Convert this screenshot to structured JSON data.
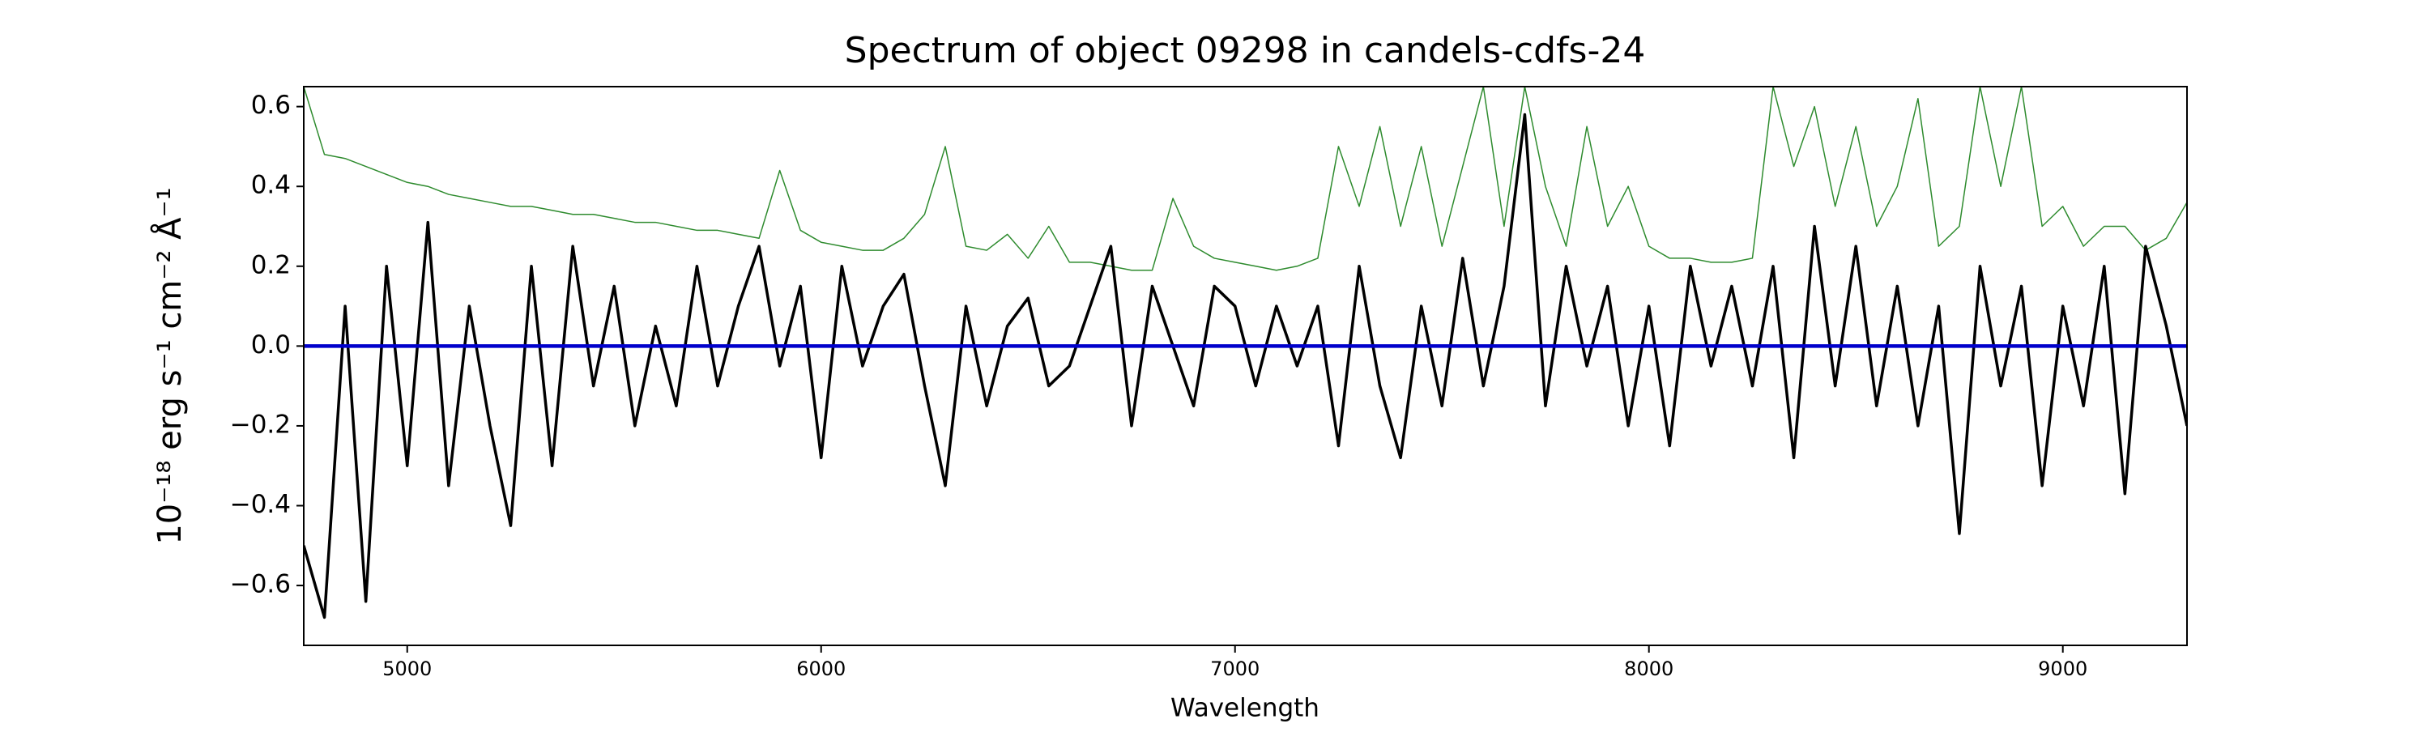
{
  "chart_data": {
    "type": "line",
    "title": "Spectrum of object 09298 in candels-cdfs-24",
    "xlabel": "Wavelength",
    "ylabel": "10⁻¹⁸ erg s⁻¹ cm⁻² Å⁻¹",
    "xlim": [
      4750,
      9300
    ],
    "ylim": [
      -0.75,
      0.65
    ],
    "xticks": [
      5000,
      6000,
      7000,
      8000,
      9000
    ],
    "yticks": [
      {
        "value": -0.6,
        "label": "−0.6"
      },
      {
        "value": -0.4,
        "label": "−0.4"
      },
      {
        "value": -0.2,
        "label": "−0.2"
      },
      {
        "value": 0,
        "label": "0.0"
      },
      {
        "value": 0.2,
        "label": "0.2"
      },
      {
        "value": 0.4,
        "label": "0.4"
      },
      {
        "value": 0.6,
        "label": "0.6"
      }
    ],
    "grid": false,
    "x": [
      4750,
      4800,
      4850,
      4900,
      4950,
      5000,
      5050,
      5100,
      5150,
      5200,
      5250,
      5300,
      5350,
      5400,
      5450,
      5500,
      5550,
      5600,
      5650,
      5700,
      5750,
      5800,
      5850,
      5900,
      5950,
      6000,
      6050,
      6100,
      6150,
      6200,
      6250,
      6300,
      6350,
      6400,
      6450,
      6500,
      6550,
      6600,
      6650,
      6700,
      6750,
      6800,
      6850,
      6900,
      6950,
      7000,
      7050,
      7100,
      7150,
      7200,
      7250,
      7300,
      7350,
      7400,
      7450,
      7500,
      7550,
      7600,
      7650,
      7700,
      7750,
      7800,
      7850,
      7900,
      7950,
      8000,
      8050,
      8100,
      8150,
      8200,
      8250,
      8300,
      8350,
      8400,
      8450,
      8500,
      8550,
      8600,
      8650,
      8700,
      8750,
      8800,
      8850,
      8900,
      8950,
      9000,
      9050,
      9100,
      9150,
      9200,
      9250,
      9300
    ],
    "series": [
      {
        "color": "#2e8b2e",
        "width": 1.5,
        "values": [
          0.65,
          0.48,
          0.47,
          0.45,
          0.43,
          0.41,
          0.4,
          0.38,
          0.37,
          0.36,
          0.35,
          0.35,
          0.34,
          0.33,
          0.33,
          0.32,
          0.31,
          0.31,
          0.3,
          0.29,
          0.29,
          0.28,
          0.27,
          0.44,
          0.29,
          0.26,
          0.25,
          0.24,
          0.24,
          0.27,
          0.33,
          0.5,
          0.25,
          0.24,
          0.28,
          0.22,
          0.3,
          0.21,
          0.21,
          0.2,
          0.19,
          0.19,
          0.37,
          0.25,
          0.22,
          0.21,
          0.2,
          0.19,
          0.2,
          0.22,
          0.5,
          0.35,
          0.55,
          0.3,
          0.5,
          0.25,
          0.45,
          0.65,
          0.3,
          0.65,
          0.4,
          0.25,
          0.55,
          0.3,
          0.4,
          0.25,
          0.22,
          0.22,
          0.21,
          0.21,
          0.22,
          0.65,
          0.45,
          0.6,
          0.35,
          0.55,
          0.3,
          0.4,
          0.62,
          0.25,
          0.3,
          0.65,
          0.4,
          0.65,
          0.3,
          0.35,
          0.25,
          0.3,
          0.3,
          0.24,
          0.27,
          0.36
        ]
      },
      {
        "color": "#000000",
        "width": 3.5,
        "values": [
          -0.5,
          -0.68,
          0.1,
          -0.64,
          0.2,
          -0.3,
          0.31,
          -0.35,
          0.1,
          -0.2,
          -0.45,
          0.2,
          -0.3,
          0.25,
          -0.1,
          0.15,
          -0.2,
          0.05,
          -0.15,
          0.2,
          -0.1,
          0.1,
          0.25,
          -0.05,
          0.15,
          -0.28,
          0.2,
          -0.05,
          0.1,
          0.18,
          -0.1,
          -0.35,
          0.1,
          -0.15,
          0.05,
          0.12,
          -0.1,
          -0.05,
          0.1,
          0.25,
          -0.2,
          0.15,
          0,
          -0.15,
          0.15,
          0.1,
          -0.1,
          0.1,
          -0.05,
          0.1,
          -0.25,
          0.2,
          -0.1,
          -0.28,
          0.1,
          -0.15,
          0.22,
          -0.1,
          0.15,
          0.58,
          -0.15,
          0.2,
          -0.05,
          0.15,
          -0.2,
          0.1,
          -0.25,
          0.2,
          -0.05,
          0.15,
          -0.1,
          0.2,
          -0.28,
          0.3,
          -0.1,
          0.25,
          -0.15,
          0.15,
          -0.2,
          0.1,
          -0.47,
          0.2,
          -0.1,
          0.15,
          -0.35,
          0.1,
          -0.15,
          0.2,
          -0.37,
          0.25,
          0.05,
          -0.2
        ]
      },
      {
        "color": "#0000cc",
        "width": 4.5,
        "x": [
          4750,
          9300
        ],
        "values": [
          0,
          0
        ]
      }
    ]
  }
}
